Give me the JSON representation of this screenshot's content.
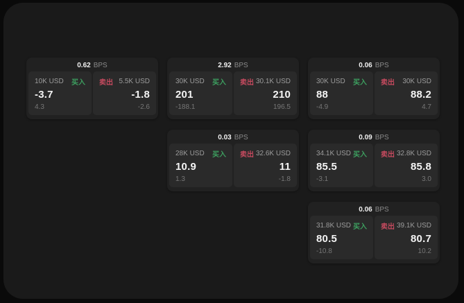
{
  "labels": {
    "bps_unit": "BPS",
    "buy": "买入",
    "sell": "卖出"
  },
  "colors": {
    "buy_text": "#3d9e5f",
    "sell_text": "#c44a5e"
  },
  "cards": [
    {
      "bps": "0.62",
      "row": 0,
      "col": 0,
      "buy": {
        "amount": "10K USD",
        "value": "-3.7",
        "delta": "4.3"
      },
      "sell": {
        "amount": "5.5K USD",
        "value": "-1.8",
        "delta": "-2.6"
      }
    },
    {
      "bps": "2.92",
      "row": 0,
      "col": 1,
      "buy": {
        "amount": "30K USD",
        "value": "201",
        "delta": "-188.1"
      },
      "sell": {
        "amount": "30.1K USD",
        "value": "210",
        "delta": "196.5"
      }
    },
    {
      "bps": "0.06",
      "row": 0,
      "col": 2,
      "buy": {
        "amount": "30K USD",
        "value": "88",
        "delta": "-4.9"
      },
      "sell": {
        "amount": "30K USD",
        "value": "88.2",
        "delta": "4.7"
      }
    },
    {
      "bps": "0.03",
      "row": 1,
      "col": 1,
      "buy": {
        "amount": "28K USD",
        "value": "10.9",
        "delta": "1.3"
      },
      "sell": {
        "amount": "32.6K USD",
        "value": "11",
        "delta": "-1.8"
      }
    },
    {
      "bps": "0.09",
      "row": 1,
      "col": 2,
      "buy": {
        "amount": "34.1K USD",
        "value": "85.5",
        "delta": "-3.1"
      },
      "sell": {
        "amount": "32.8K USD",
        "value": "85.8",
        "delta": "3.0"
      }
    },
    {
      "bps": "0.06",
      "row": 2,
      "col": 2,
      "buy": {
        "amount": "31.8K USD",
        "value": "80.5",
        "delta": "-10.8"
      },
      "sell": {
        "amount": "39.1K USD",
        "value": "80.7",
        "delta": "10.2"
      }
    }
  ]
}
